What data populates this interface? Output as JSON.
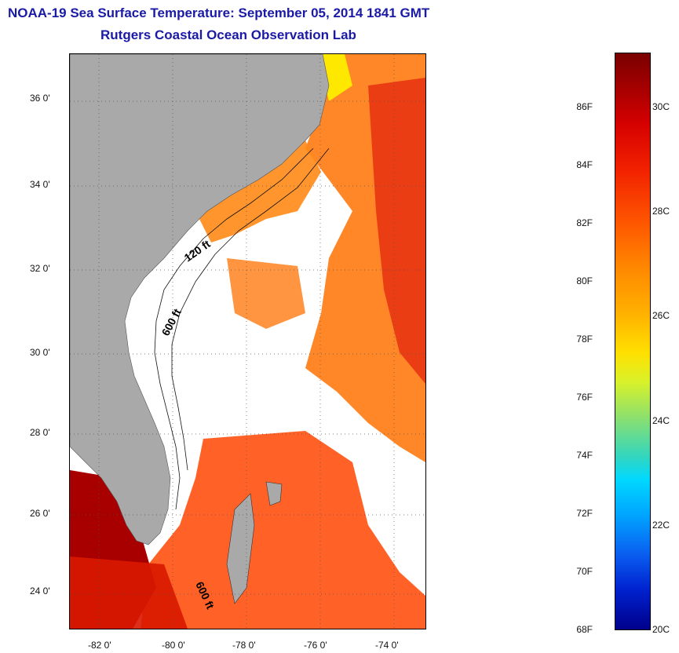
{
  "title": {
    "line1": "NOAA-19 Sea Surface Temperature:  September 05, 2014 1841 GMT",
    "line2": "Rutgers Coastal Ocean Observation Lab"
  },
  "map": {
    "lat_labels": [
      "36 0'",
      "34 0'",
      "32 0'",
      "30 0'",
      "28 0'",
      "26 0'",
      "24 0'"
    ],
    "lon_labels": [
      "-82 0'",
      "-80 0'",
      "-78 0'",
      "-76 0'",
      "-74 0'"
    ],
    "contour_labels": [
      "120 ft",
      "600 ft",
      "600 ft"
    ],
    "land_color": "#a9a9a9",
    "grid": true
  },
  "colorbar": {
    "f_labels": [
      "86F",
      "84F",
      "82F",
      "80F",
      "78F",
      "76F",
      "74F",
      "72F",
      "70F",
      "68F"
    ],
    "c_labels": [
      "30C",
      "28C",
      "26C",
      "24C",
      "22C",
      "20C"
    ],
    "range_f": [
      68,
      88
    ],
    "range_c": [
      20,
      31
    ]
  }
}
